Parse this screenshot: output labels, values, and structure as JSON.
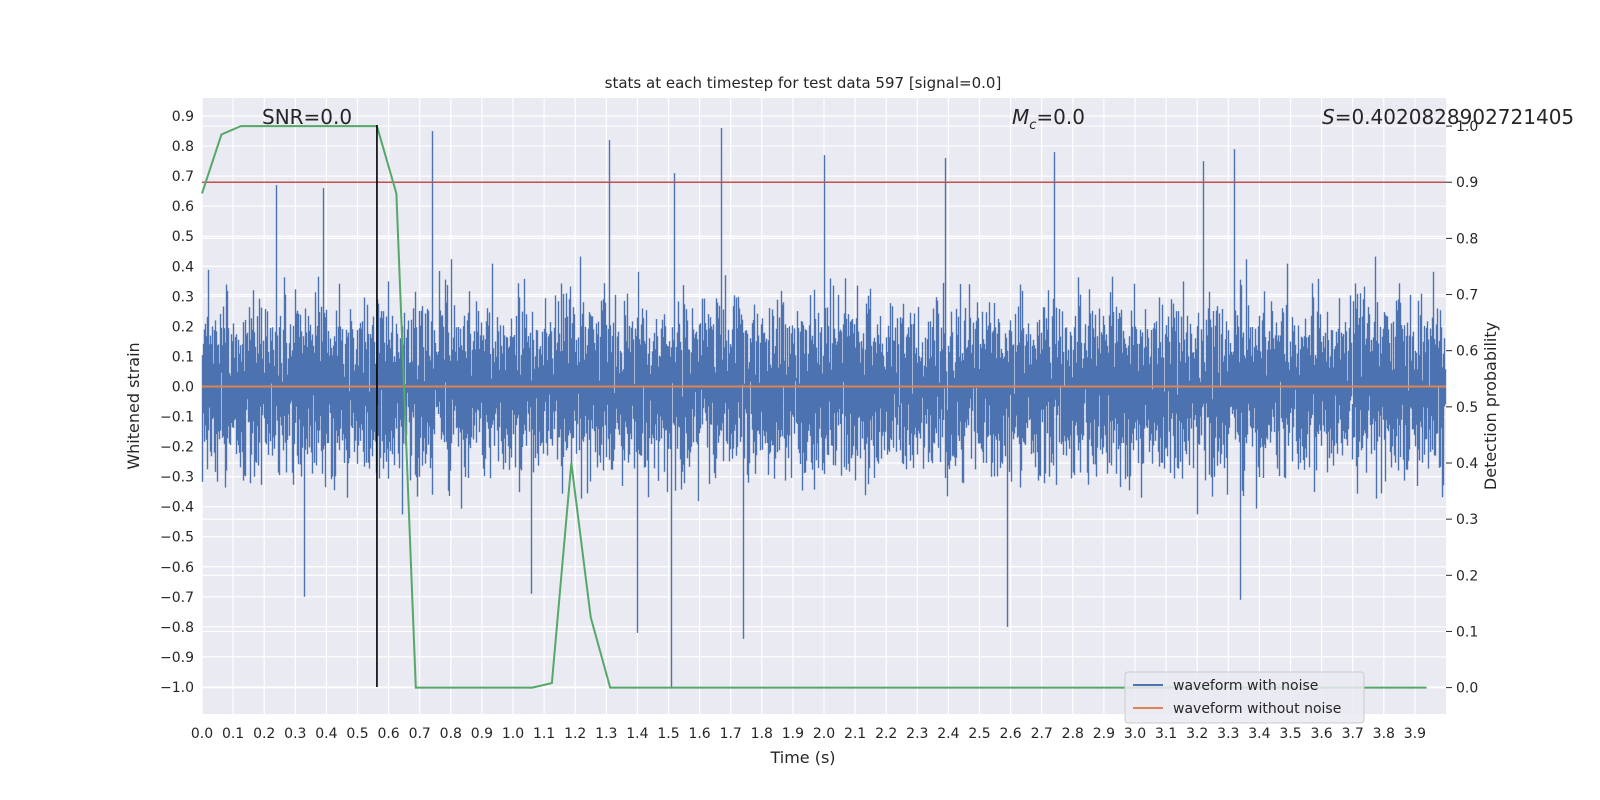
{
  "chart_data": {
    "type": "line",
    "title": "stats at each timestep for test data 597 [signal=0.0]",
    "xlabel": "Time (s)",
    "ylabel": "Whitened strain",
    "ylabel_right": "Detection probability",
    "xlim": [
      0.0,
      4.0
    ],
    "ylim": [
      -1.09,
      0.96
    ],
    "ylim_right": [
      -0.047,
      1.05
    ],
    "x_ticks": [
      "0.0",
      "0.1",
      "0.2",
      "0.3",
      "0.4",
      "0.5",
      "0.6",
      "0.7",
      "0.8",
      "0.9",
      "1.0",
      "1.1",
      "1.2",
      "1.3",
      "1.4",
      "1.5",
      "1.6",
      "1.7",
      "1.8",
      "1.9",
      "2.0",
      "2.1",
      "2.2",
      "2.3",
      "2.4",
      "2.5",
      "2.6",
      "2.7",
      "2.8",
      "2.9",
      "3.0",
      "3.1",
      "3.2",
      "3.3",
      "3.4",
      "3.5",
      "3.6",
      "3.7",
      "3.8",
      "3.9"
    ],
    "y_ticks": [
      "0.9",
      "0.8",
      "0.7",
      "0.6",
      "0.5",
      "0.4",
      "0.3",
      "0.2",
      "0.1",
      "0.0",
      "-0.1",
      "-0.2",
      "-0.3",
      "-0.4",
      "-0.5",
      "-0.6",
      "-0.7",
      "-0.8",
      "-0.9",
      "-1.0"
    ],
    "y_ticks_right": [
      "0.0",
      "0.1",
      "0.2",
      "0.3",
      "0.4",
      "0.5",
      "0.6",
      "0.7",
      "0.8",
      "0.9",
      "1.0"
    ],
    "annotations": {
      "snr": "SNR=0.0",
      "mc_symbol": "M",
      "mc_sub": "c",
      "mc_value": "=0.0",
      "s_symbol": "S",
      "s_value": "=0.4020828902721405"
    },
    "grid": true,
    "legend_position": "lower-right",
    "series": [
      {
        "name": "waveform with noise",
        "color": "#4c72b0",
        "axis": "left",
        "style": "noise",
        "sample_rate": 2048,
        "amplitude_range": [
          -1.0,
          0.87
        ],
        "peaks": [
          {
            "x": 0.74,
            "y": 0.85
          },
          {
            "x": 1.31,
            "y": 0.82
          },
          {
            "x": 1.52,
            "y": 0.71
          },
          {
            "x": 1.67,
            "y": 0.86
          },
          {
            "x": 2.0,
            "y": 0.77
          },
          {
            "x": 2.39,
            "y": 0.76
          },
          {
            "x": 2.74,
            "y": 0.78
          },
          {
            "x": 3.22,
            "y": 0.75
          },
          {
            "x": 3.32,
            "y": 0.79
          },
          {
            "x": 0.24,
            "y": 0.67
          },
          {
            "x": 0.39,
            "y": 0.66
          }
        ],
        "troughs": [
          {
            "x": 1.51,
            "y": -1.0
          },
          {
            "x": 0.33,
            "y": -0.7
          },
          {
            "x": 1.06,
            "y": -0.69
          },
          {
            "x": 1.4,
            "y": -0.82
          },
          {
            "x": 1.74,
            "y": -0.84
          },
          {
            "x": 2.59,
            "y": -0.8
          },
          {
            "x": 3.34,
            "y": -0.71
          }
        ]
      },
      {
        "name": "waveform without noise",
        "color": "#dd8452",
        "axis": "left",
        "x": [
          0.0,
          4.0
        ],
        "y": [
          0.0,
          0.0
        ]
      },
      {
        "name": "",
        "color": "#55a868",
        "axis": "right",
        "x": [
          0.0,
          0.0625,
          0.125,
          0.1875,
          0.25,
          0.3125,
          0.375,
          0.4375,
          0.5,
          0.5625,
          0.625,
          0.6875,
          0.75,
          0.8125,
          0.875,
          0.9375,
          1.0,
          1.0625,
          1.125,
          1.1875,
          1.25,
          1.3125,
          1.375,
          1.4375,
          1.5,
          1.5625,
          1.625,
          1.6875,
          1.75,
          1.8125,
          1.875,
          1.9375,
          2.0,
          2.0625,
          2.125,
          2.1875,
          2.25,
          2.3125,
          2.375,
          2.4375,
          2.5,
          2.5625,
          2.625,
          2.6875,
          2.75,
          2.8125,
          2.875,
          2.9375,
          3.0,
          3.0625,
          3.125,
          3.1875,
          3.25,
          3.3125,
          3.375,
          3.4375,
          3.5,
          3.5625,
          3.625,
          3.6875,
          3.75,
          3.8125,
          3.875,
          3.9375
        ],
        "y": [
          0.88,
          0.985,
          1.0,
          1.0,
          1.0,
          1.0,
          1.0,
          1.0,
          1.0,
          1.0,
          0.88,
          0.0,
          0.0,
          0.0,
          0.0,
          0.0,
          0.0,
          0.0,
          0.008,
          0.4,
          0.125,
          0.0,
          0.0,
          0.0,
          0.0,
          0.0,
          0.0,
          0.0,
          0.0,
          0.0,
          0.0,
          0.0,
          0.0,
          0.0,
          0.0,
          0.0,
          0.0,
          0.0,
          0.0,
          0.0,
          0.0,
          0.0,
          0.0,
          0.0,
          0.0,
          0.0,
          0.0,
          0.0,
          0.0,
          0.0,
          0.0,
          0.0,
          0.0,
          0.0,
          0.0,
          0.0,
          0.0,
          0.0,
          0.0,
          0.0,
          0.0,
          0.0,
          0.0,
          0.0
        ]
      }
    ],
    "hlines": [
      {
        "y": 0.9,
        "axis": "right",
        "color": "#c44e52"
      }
    ],
    "vlines": [
      {
        "x": 0.5625,
        "y_from": -1.0,
        "y_to": 0.87,
        "color": "#000000"
      }
    ]
  }
}
